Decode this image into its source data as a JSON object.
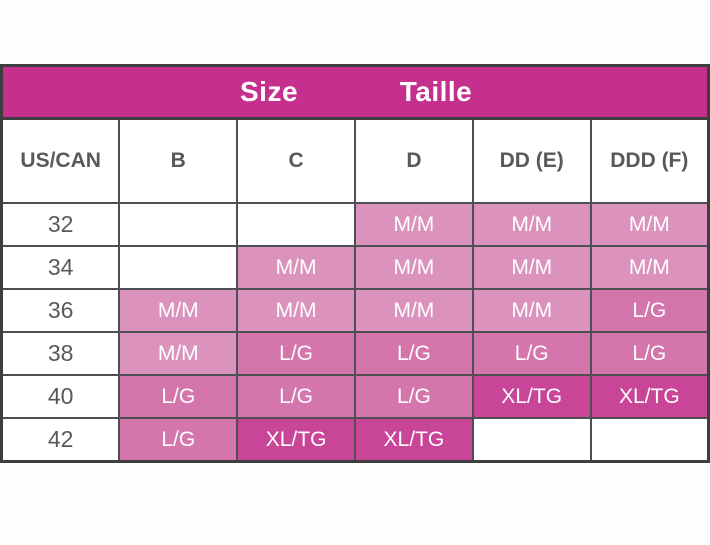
{
  "title_band": {
    "size": "Size",
    "taille": "Taille",
    "background": "#c5308e",
    "text_color": "#ffffff"
  },
  "table": {
    "columns": [
      "US/CAN",
      "B",
      "C",
      "D",
      "DD (E)",
      "DDD (F)"
    ],
    "rows": [
      {
        "size": "32",
        "cells": [
          "",
          "",
          "M/M",
          "M/M",
          "M/M"
        ]
      },
      {
        "size": "34",
        "cells": [
          "",
          "M/M",
          "M/M",
          "M/M",
          "M/M"
        ]
      },
      {
        "size": "36",
        "cells": [
          "M/M",
          "M/M",
          "M/M",
          "M/M",
          "L/G"
        ]
      },
      {
        "size": "38",
        "cells": [
          "M/M",
          "L/G",
          "L/G",
          "L/G",
          "L/G"
        ]
      },
      {
        "size": "40",
        "cells": [
          "L/G",
          "L/G",
          "L/G",
          "XL/TG",
          "XL/TG"
        ]
      },
      {
        "size": "42",
        "cells": [
          "L/G",
          "XL/TG",
          "XL/TG",
          "",
          ""
        ]
      }
    ],
    "value_colors": {
      "M/M": "#db93bd",
      "L/G": "#d476ac",
      "XL/TG": "#c84598",
      "empty": "#ffffff"
    },
    "border_color": "#4e4f52",
    "header_text_color": "#58595b"
  }
}
